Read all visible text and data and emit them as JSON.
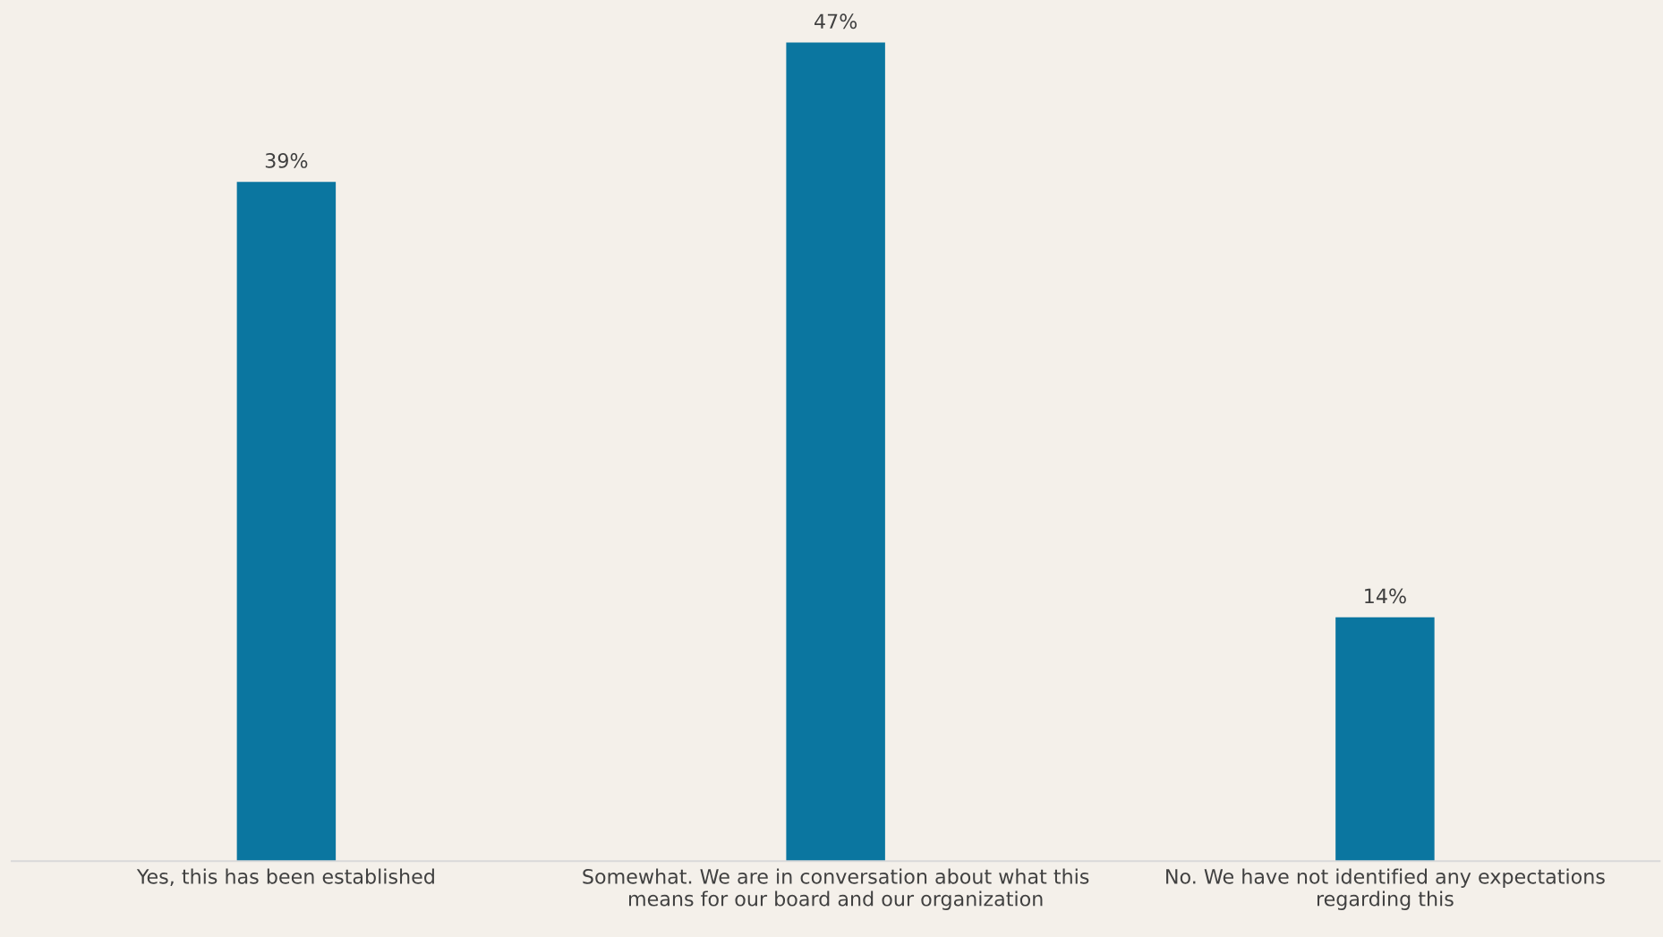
{
  "chart_data": {
    "type": "bar",
    "categories": [
      "Yes, this has been established",
      "Somewhat. We are in conversation about what this\nmeans for our board and our organization",
      "No. We have not identified any expectations\nregarding this"
    ],
    "values": [
      39,
      47,
      14
    ],
    "value_labels": [
      "39%",
      "47%",
      "14%"
    ],
    "color": "#0b76a0",
    "grid": false,
    "legend": false
  }
}
